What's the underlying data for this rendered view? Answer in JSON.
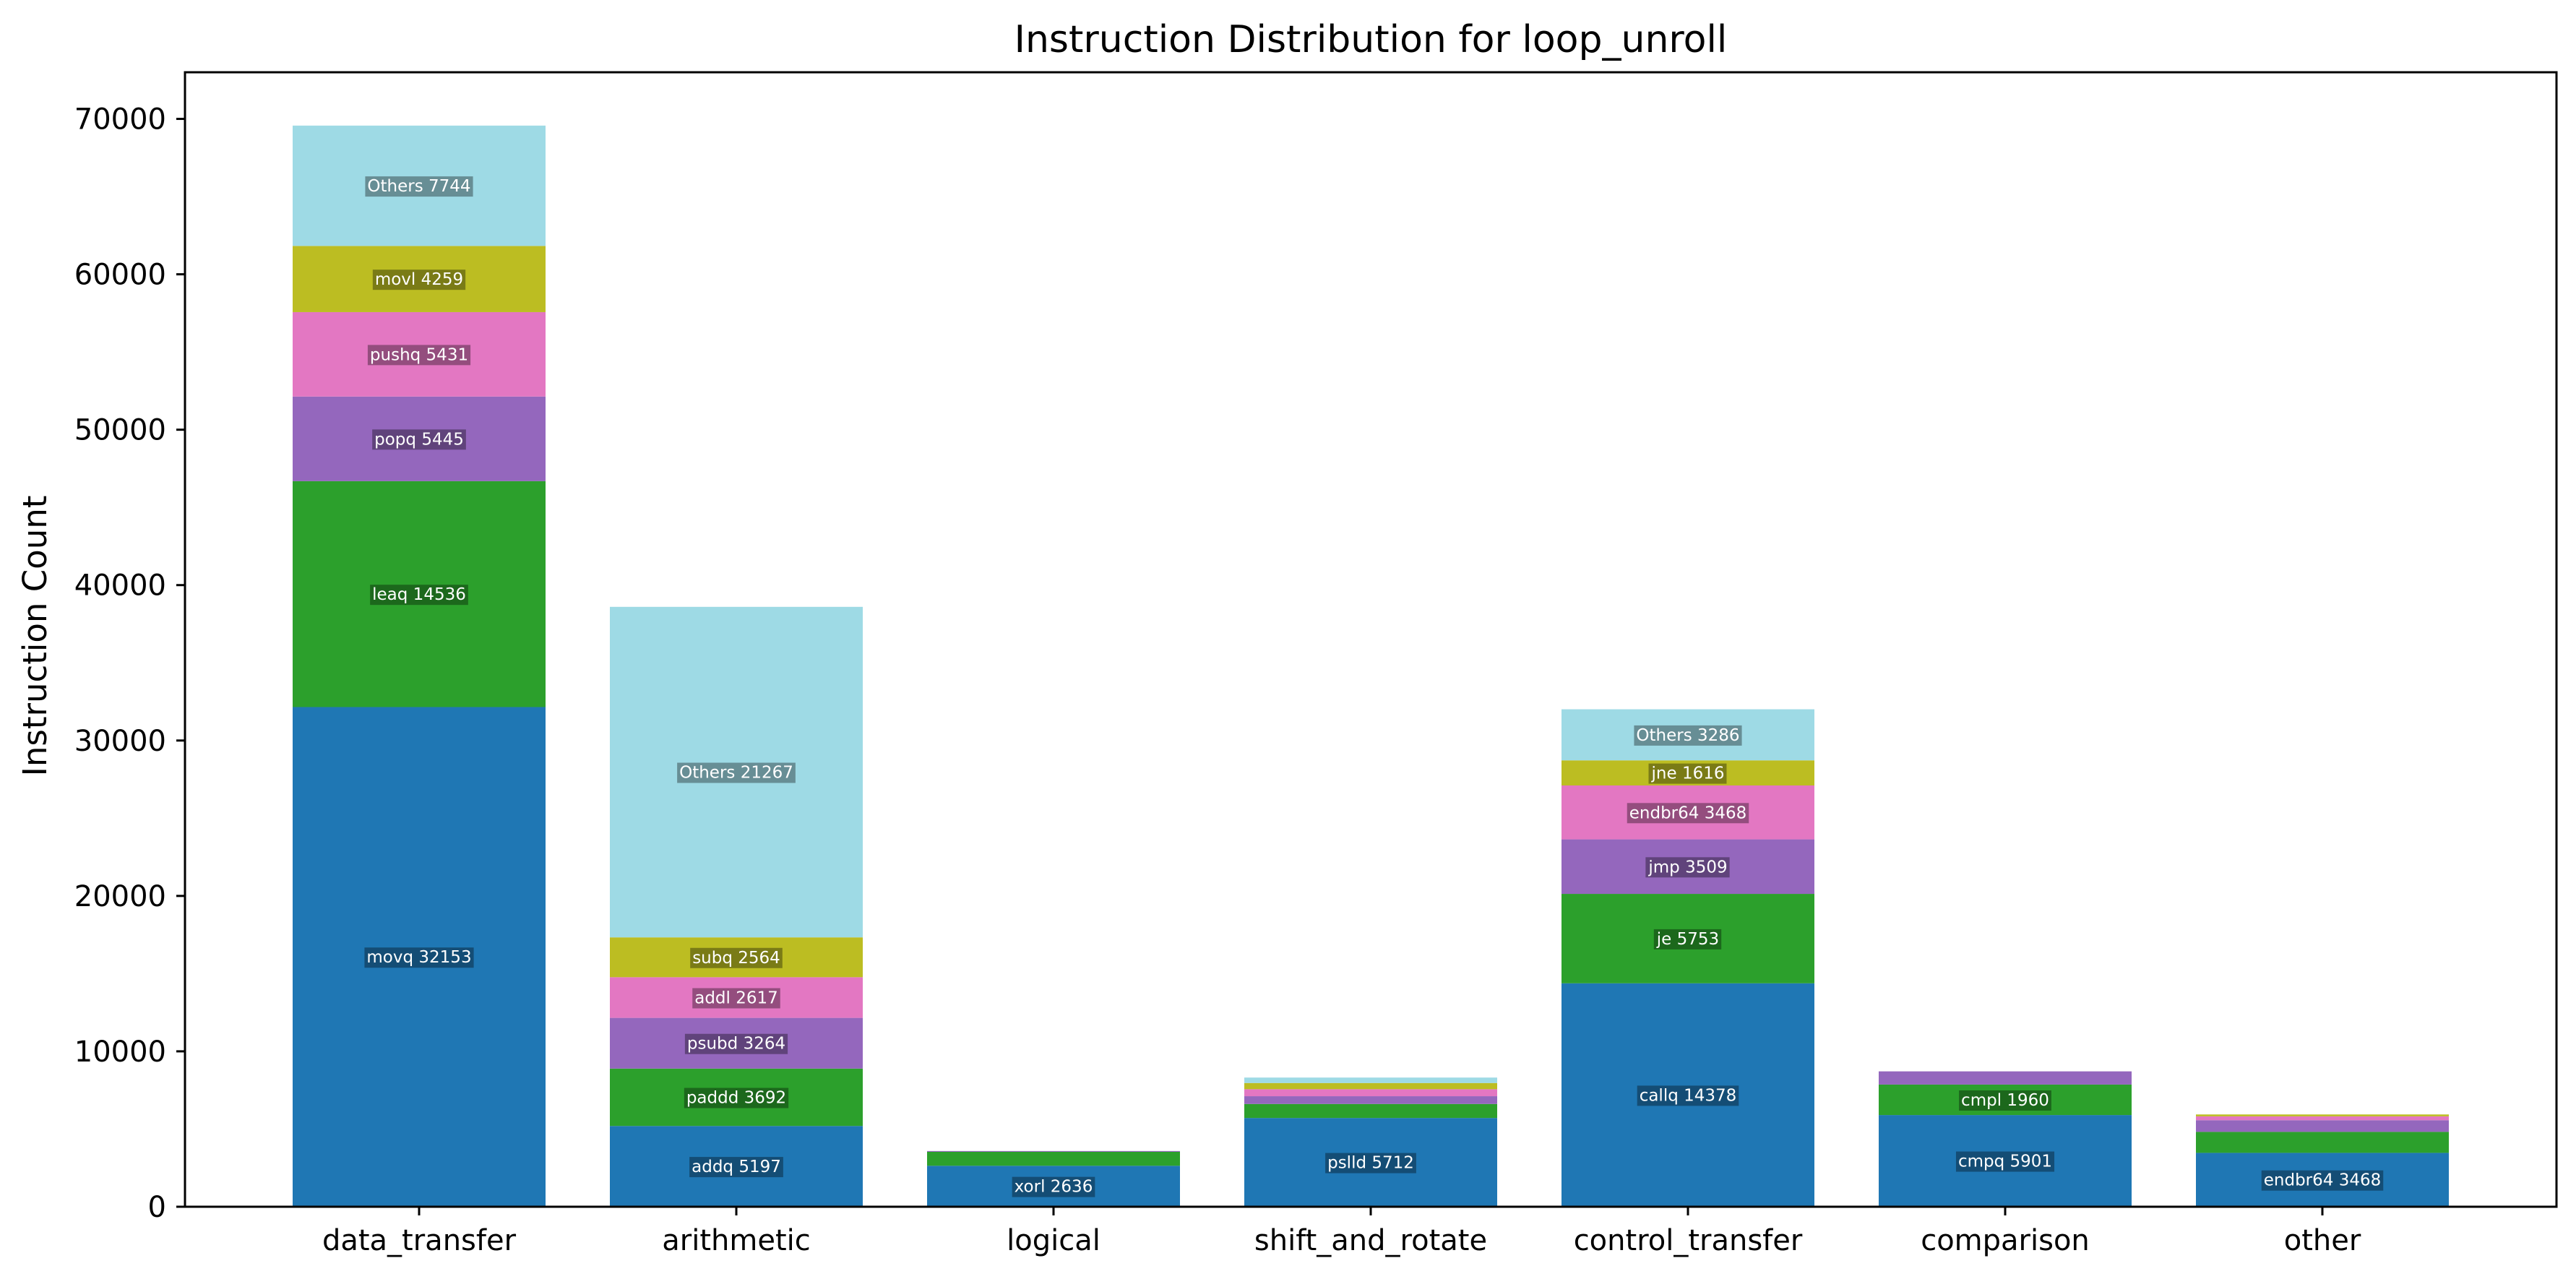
{
  "chart_data": {
    "type": "bar",
    "stacked": true,
    "title": "Instruction Distribution for loop_unroll",
    "xlabel": "",
    "ylabel": "Instruction Count",
    "ylim": [
      0,
      73000
    ],
    "yticks": [
      0,
      10000,
      20000,
      30000,
      40000,
      50000,
      60000,
      70000
    ],
    "grid": false,
    "legend": "none",
    "categories": [
      "data_transfer",
      "arithmetic",
      "logical",
      "shift_and_rotate",
      "control_transfer",
      "comparison",
      "other"
    ],
    "palette": [
      "#1f77b4",
      "#2ca02c",
      "#9467bd",
      "#e377c2",
      "#bcbd22",
      "#9edae5"
    ],
    "stacks": [
      {
        "category": "data_transfer",
        "segments": [
          {
            "name": "movq",
            "value": 32153,
            "label": "movq 32153"
          },
          {
            "name": "leaq",
            "value": 14536,
            "label": "leaq 14536"
          },
          {
            "name": "popq",
            "value": 5445,
            "label": "popq 5445"
          },
          {
            "name": "pushq",
            "value": 5431,
            "label": "pushq 5431"
          },
          {
            "name": "movl",
            "value": 4259,
            "label": "movl 4259"
          },
          {
            "name": "Others",
            "value": 7744,
            "label": "Others 7744"
          }
        ]
      },
      {
        "category": "arithmetic",
        "segments": [
          {
            "name": "addq",
            "value": 5197,
            "label": "addq 5197"
          },
          {
            "name": "paddd",
            "value": 3692,
            "label": "paddd 3692"
          },
          {
            "name": "psubd",
            "value": 3264,
            "label": "psubd 3264"
          },
          {
            "name": "addl",
            "value": 2617,
            "label": "addl 2617"
          },
          {
            "name": "subq",
            "value": 2564,
            "label": "subq 2564"
          },
          {
            "name": "Others",
            "value": 21267,
            "label": "Others 21267"
          }
        ]
      },
      {
        "category": "logical",
        "segments": [
          {
            "name": "xorl",
            "value": 2636,
            "label": "xorl 2636"
          },
          {
            "name": "",
            "value": 900,
            "label": ""
          },
          {
            "name": "",
            "value": 50,
            "label": ""
          }
        ]
      },
      {
        "category": "shift_and_rotate",
        "segments": [
          {
            "name": "pslld",
            "value": 5712,
            "label": "pslld 5712"
          },
          {
            "name": "",
            "value": 900,
            "label": ""
          },
          {
            "name": "",
            "value": 500,
            "label": ""
          },
          {
            "name": "",
            "value": 450,
            "label": ""
          },
          {
            "name": "",
            "value": 400,
            "label": ""
          },
          {
            "name": "",
            "value": 350,
            "label": ""
          }
        ]
      },
      {
        "category": "control_transfer",
        "segments": [
          {
            "name": "callq",
            "value": 14378,
            "label": "callq 14378"
          },
          {
            "name": "je",
            "value": 5753,
            "label": "je 5753"
          },
          {
            "name": "jmp",
            "value": 3509,
            "label": "jmp 3509"
          },
          {
            "name": "endbr64",
            "value": 3468,
            "label": "endbr64 3468"
          },
          {
            "name": "jne",
            "value": 1616,
            "label": "jne 1616"
          },
          {
            "name": "Others",
            "value": 3286,
            "label": "Others 3286"
          }
        ]
      },
      {
        "category": "comparison",
        "segments": [
          {
            "name": "cmpq",
            "value": 5901,
            "label": "cmpq 5901"
          },
          {
            "name": "cmpl",
            "value": 1960,
            "label": "cmpl 1960"
          },
          {
            "name": "",
            "value": 850,
            "label": ""
          }
        ]
      },
      {
        "category": "other",
        "segments": [
          {
            "name": "endbr64",
            "value": 3468,
            "label": "endbr64 3468"
          },
          {
            "name": "",
            "value": 1350,
            "label": ""
          },
          {
            "name": "",
            "value": 750,
            "label": ""
          },
          {
            "name": "",
            "value": 250,
            "label": ""
          },
          {
            "name": "",
            "value": 120,
            "label": ""
          }
        ]
      }
    ]
  }
}
